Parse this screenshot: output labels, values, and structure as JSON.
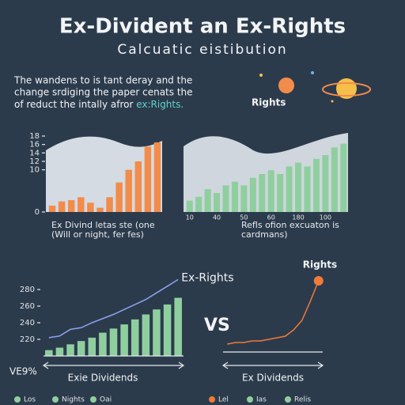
{
  "title": "Ex-Divident an Ex-Rights",
  "subtitle": "Calcuatic eistibution",
  "intro": [
    "The wandens to is tant deray and the",
    "change srdiging the paper cenats the",
    "of reduct the intally afror "
  ],
  "intro_highlight": "ex:Rights.",
  "badge": "Rights",
  "vs": "VS",
  "chart_data": [
    {
      "type": "bar",
      "categories": [
        null,
        null,
        null,
        null,
        null,
        null,
        null,
        null,
        null,
        null,
        null,
        null
      ],
      "values": [
        1.5,
        2.5,
        2.8,
        3.5,
        2.2,
        1,
        3.5,
        7,
        10,
        12,
        15.5,
        16.5
      ],
      "color": "#f28c4b",
      "ylim": [
        0,
        18
      ],
      "yticks": [
        0,
        10,
        12,
        14,
        16,
        18
      ],
      "caption": [
        "Ex Divind letas ste (one",
        "(Will or night, fer fes)"
      ]
    },
    {
      "type": "bar",
      "categories": [
        "10",
        null,
        null,
        "40",
        null,
        null,
        "50",
        null,
        null,
        "60",
        null,
        null,
        "180",
        null,
        null,
        "100",
        null,
        null
      ],
      "values": [
        3,
        4,
        6,
        5,
        7,
        8,
        7,
        9,
        10,
        11,
        10,
        12,
        13,
        12,
        14,
        15,
        17,
        18
      ],
      "color": "#8fcf9f",
      "ylim": [
        0,
        20
      ],
      "caption": [
        "Refls ofion excuaton is",
        "cardmans)"
      ]
    },
    {
      "type": "combo",
      "categories": [
        null,
        null,
        null,
        null,
        null,
        null,
        null,
        null,
        null,
        null,
        null,
        null,
        null
      ],
      "series": [
        {
          "type": "bar",
          "color": "#8fcf9f",
          "values": [
            207,
            210,
            214,
            218,
            222,
            228,
            233,
            238,
            244,
            250,
            256,
            262,
            270
          ]
        },
        {
          "type": "line",
          "name": "Ex-Rights",
          "color": "#8ea2ee",
          "values": [
            222,
            224,
            232,
            234,
            240,
            245,
            250,
            256,
            262,
            268,
            276,
            284,
            292
          ]
        }
      ],
      "ylim": [
        200,
        300
      ],
      "yticks": [
        220,
        240,
        260,
        280
      ],
      "xlabel": "Exie Dividends",
      "note": "VE9%",
      "legend": [
        {
          "name": "Los",
          "color": "#8fcf9f"
        },
        {
          "name": "Nights",
          "color": "#8fcf9f"
        },
        {
          "name": "Oai",
          "color": "#8fcf9f"
        }
      ]
    },
    {
      "type": "line",
      "series": [
        {
          "name": "Rights",
          "color": "#f07b3a",
          "values": [
            5,
            6,
            6,
            7,
            7,
            8,
            9,
            10,
            14,
            20,
            32,
            45
          ]
        }
      ],
      "ylim": [
        0,
        50
      ],
      "xlabel": "Ex Dividends",
      "legend": [
        {
          "name": "Lel",
          "color": "#f07b3a"
        },
        {
          "name": "Ias",
          "color": "#8fcf9f"
        },
        {
          "name": "Relis",
          "color": "#8fcf9f"
        }
      ]
    }
  ]
}
